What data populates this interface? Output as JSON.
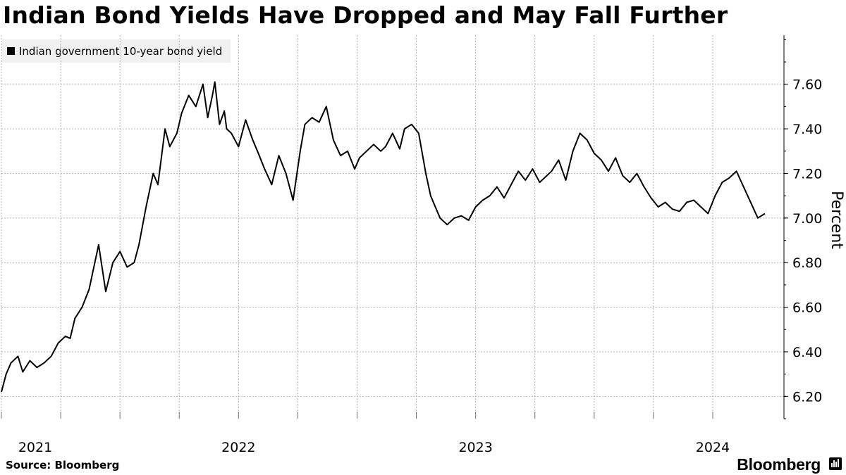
{
  "title": "Indian Bond Yields Have Dropped and May Fall Further",
  "legend": {
    "label": "Indian government 10-year bond yield"
  },
  "source": "Source: Bloomberg",
  "brand": "Bloomberg",
  "colors": {
    "line": "#000000",
    "grid": "#b4b4b4",
    "legend_bg": "#f0f0f0"
  },
  "chart_data": {
    "type": "line",
    "title": "Indian Bond Yields Have Dropped and May Fall Further",
    "ylabel": "Percent",
    "xlabel": "",
    "ylim": [
      6.1,
      7.82
    ],
    "xlim": [
      2021.0,
      2024.3
    ],
    "y_ticks": [
      6.2,
      6.4,
      6.6,
      6.8,
      7.0,
      7.2,
      7.4,
      7.6
    ],
    "y_tick_labels": [
      "6.20",
      "6.40",
      "6.60",
      "6.80",
      "7.00",
      "7.20",
      "7.40",
      "7.60"
    ],
    "x_ticks": [
      2021.0,
      2022.0,
      2023.0,
      2024.0
    ],
    "x_tick_labels": [
      "2021",
      "2022",
      "2023",
      "2024"
    ],
    "x_grid": [
      2021.0,
      2021.25,
      2021.5,
      2021.75,
      2022.0,
      2022.25,
      2022.5,
      2022.75,
      2023.0,
      2023.25,
      2023.5,
      2023.75,
      2024.0
    ],
    "grid": true,
    "legend_position": "top-left",
    "series": [
      {
        "name": "Indian government 10-year bond yield",
        "x": [
          2021.0,
          2021.02,
          2021.04,
          2021.07,
          2021.09,
          2021.12,
          2021.15,
          2021.18,
          2021.21,
          2021.24,
          2021.27,
          2021.29,
          2021.31,
          2021.34,
          2021.37,
          2021.41,
          2021.44,
          2021.47,
          2021.5,
          2021.53,
          2021.56,
          2021.58,
          2021.61,
          2021.64,
          2021.66,
          2021.69,
          2021.71,
          2021.74,
          2021.76,
          2021.79,
          2021.82,
          2021.85,
          2021.87,
          2021.89,
          2021.9,
          2021.92,
          2021.94,
          2021.95,
          2021.97,
          2022.0,
          2022.03,
          2022.06,
          2022.08,
          2022.11,
          2022.14,
          2022.17,
          2022.2,
          2022.23,
          2022.26,
          2022.28,
          2022.31,
          2022.34,
          2022.37,
          2022.4,
          2022.43,
          2022.46,
          2022.49,
          2022.51,
          2022.54,
          2022.57,
          2022.6,
          2022.62,
          2022.65,
          2022.68,
          2022.7,
          2022.73,
          2022.76,
          2022.79,
          2022.81,
          2022.83,
          2022.85,
          2022.88,
          2022.91,
          2022.94,
          2022.97,
          2023.0,
          2023.03,
          2023.06,
          2023.09,
          2023.12,
          2023.15,
          2023.18,
          2023.21,
          2023.24,
          2023.27,
          2023.29,
          2023.32,
          2023.35,
          2023.38,
          2023.41,
          2023.44,
          2023.47,
          2023.5,
          2023.53,
          2023.56,
          2023.59,
          2023.62,
          2023.65,
          2023.68,
          2023.71,
          2023.74,
          2023.77,
          2023.8,
          2023.83,
          2023.86,
          2023.89,
          2023.92,
          2023.95,
          2023.98,
          2024.01,
          2024.04,
          2024.07,
          2024.1,
          2024.13,
          2024.16,
          2024.19,
          2024.22
        ],
        "values": [
          6.22,
          6.3,
          6.35,
          6.38,
          6.31,
          6.36,
          6.33,
          6.35,
          6.38,
          6.44,
          6.47,
          6.46,
          6.55,
          6.6,
          6.68,
          6.88,
          6.67,
          6.8,
          6.85,
          6.78,
          6.8,
          6.88,
          7.05,
          7.2,
          7.15,
          7.4,
          7.32,
          7.38,
          7.47,
          7.55,
          7.5,
          7.6,
          7.45,
          7.55,
          7.61,
          7.42,
          7.48,
          7.4,
          7.38,
          7.32,
          7.44,
          7.35,
          7.3,
          7.22,
          7.15,
          7.28,
          7.2,
          7.08,
          7.3,
          7.42,
          7.45,
          7.43,
          7.5,
          7.35,
          7.28,
          7.3,
          7.22,
          7.27,
          7.3,
          7.33,
          7.3,
          7.32,
          7.38,
          7.31,
          7.4,
          7.42,
          7.38,
          7.2,
          7.1,
          7.05,
          7.0,
          6.97,
          7.0,
          7.01,
          6.99,
          7.05,
          7.08,
          7.1,
          7.14,
          7.09,
          7.15,
          7.21,
          7.17,
          7.22,
          7.16,
          7.18,
          7.21,
          7.26,
          7.17,
          7.3,
          7.38,
          7.35,
          7.29,
          7.26,
          7.21,
          7.27,
          7.19,
          7.16,
          7.2,
          7.14,
          7.09,
          7.05,
          7.07,
          7.04,
          7.03,
          7.07,
          7.08,
          7.05,
          7.02,
          7.1,
          7.16,
          7.18,
          7.21,
          7.14,
          7.07,
          7.0,
          7.02
        ]
      }
    ]
  }
}
